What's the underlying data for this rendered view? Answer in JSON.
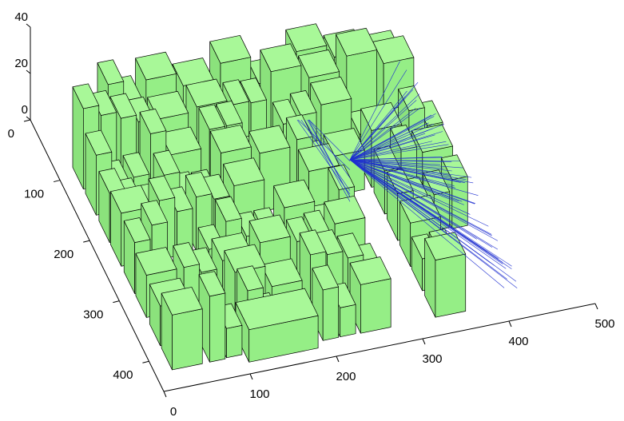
{
  "chart_data": {
    "type": "3d",
    "xlim": [
      0,
      500
    ],
    "ylim": [
      0,
      450
    ],
    "zlim": [
      0,
      40
    ],
    "xticks": [
      0,
      100,
      200,
      300,
      400,
      500
    ],
    "yticks": [
      0,
      100,
      200,
      300,
      400
    ],
    "zticks": [
      0,
      20,
      40
    ]
  }
}
